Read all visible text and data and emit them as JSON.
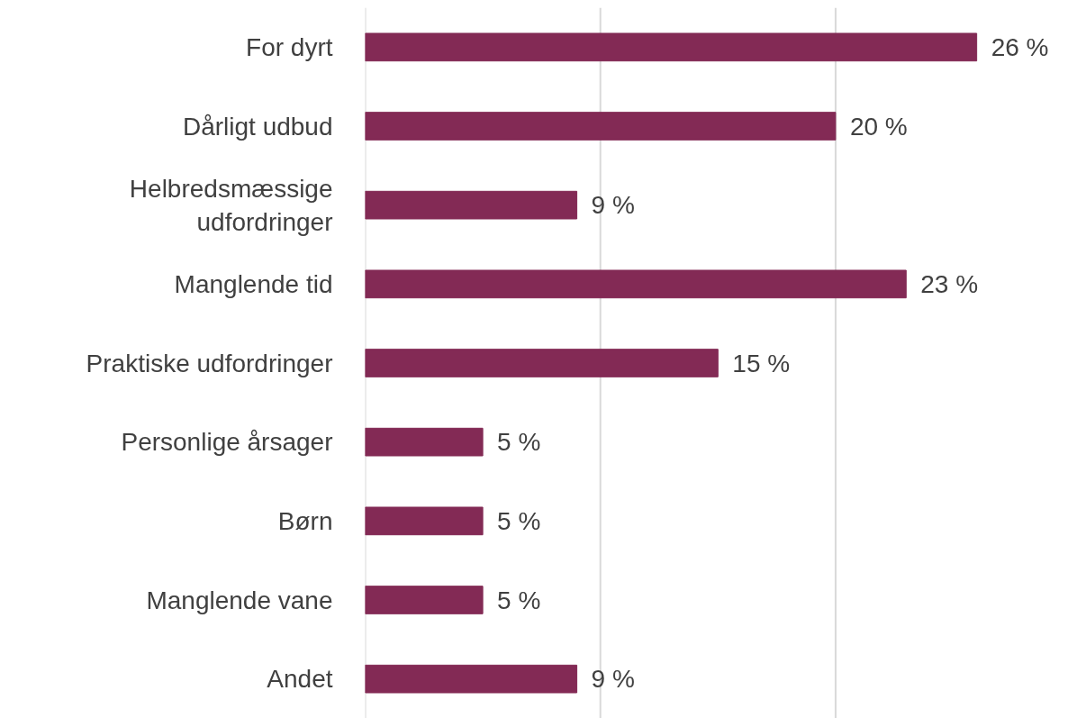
{
  "chart_data": {
    "type": "bar",
    "orientation": "horizontal",
    "categories": [
      "For dyrt",
      "Dårligt udbud",
      "Helbredsmæssige\nudfordringer",
      "Manglende tid",
      "Praktiske udfordringer",
      "Personlige årsager",
      "Børn",
      "Manglende vane",
      "Andet"
    ],
    "values": [
      26,
      20,
      9,
      23,
      15,
      5,
      5,
      5,
      9
    ],
    "color": "#832a55",
    "value_labels": [
      "26 %",
      "20 %",
      "9 %",
      "23 %",
      "15 %",
      "5 %",
      "5 %",
      "5 %",
      "9 %"
    ],
    "ref_lines": [
      {
        "axis": "x",
        "value": 0,
        "color": "#d9d9d9"
      },
      {
        "axis": "x",
        "value": 10,
        "color": "#d9d9d9"
      },
      {
        "axis": "x",
        "value": 20,
        "color": "#d9d9d9"
      }
    ],
    "tick_labels": "y"
  }
}
